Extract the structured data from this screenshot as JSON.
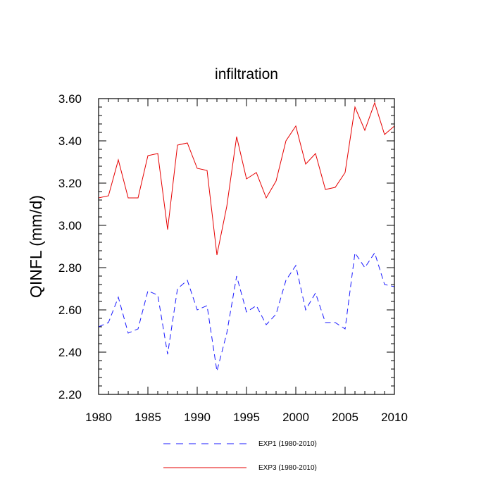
{
  "chart_data": {
    "type": "line",
    "title": "infiltration",
    "xlabel": "",
    "ylabel": "QINFL  (mm/d)",
    "xlim": [
      1980,
      2010
    ],
    "ylim": [
      2.2,
      3.6
    ],
    "xticks": [
      1980,
      1985,
      1990,
      1995,
      2000,
      2005,
      2010
    ],
    "xtick_labels": [
      "1980",
      "1985",
      "1990",
      "1995",
      "2000",
      "2005",
      "2010"
    ],
    "yticks": [
      2.2,
      2.4,
      2.6,
      2.8,
      3.0,
      3.2,
      3.4,
      3.6
    ],
    "ytick_labels": [
      "2.20",
      "2.40",
      "2.60",
      "2.80",
      "3.00",
      "3.20",
      "3.40",
      "3.60"
    ],
    "grid": false,
    "legend_position": "bottom",
    "x": [
      1980,
      1981,
      1982,
      1983,
      1984,
      1985,
      1986,
      1987,
      1988,
      1989,
      1990,
      1991,
      1992,
      1993,
      1994,
      1995,
      1996,
      1997,
      1998,
      1999,
      2000,
      2001,
      2002,
      2003,
      2004,
      2005,
      2006,
      2007,
      2008,
      2009,
      2010
    ],
    "series": [
      {
        "name": "EXP1 (1980-2010)",
        "color": "#1a1aff",
        "style": "dashed",
        "values": [
          2.52,
          2.54,
          2.66,
          2.49,
          2.51,
          2.69,
          2.67,
          2.39,
          2.7,
          2.74,
          2.6,
          2.62,
          2.31,
          2.49,
          2.76,
          2.59,
          2.62,
          2.53,
          2.58,
          2.74,
          2.81,
          2.6,
          2.68,
          2.54,
          2.54,
          2.51,
          2.87,
          2.8,
          2.87,
          2.72,
          2.71
        ]
      },
      {
        "name": "EXP3 (1980-2010)",
        "color": "#e60000",
        "style": "solid",
        "values": [
          3.13,
          3.14,
          3.31,
          3.13,
          3.13,
          3.33,
          3.34,
          2.98,
          3.38,
          3.39,
          3.27,
          3.26,
          2.86,
          3.09,
          3.42,
          3.22,
          3.25,
          3.13,
          3.21,
          3.4,
          3.47,
          3.29,
          3.34,
          3.17,
          3.18,
          3.25,
          3.56,
          3.45,
          3.58,
          3.43,
          3.47
        ]
      }
    ]
  }
}
